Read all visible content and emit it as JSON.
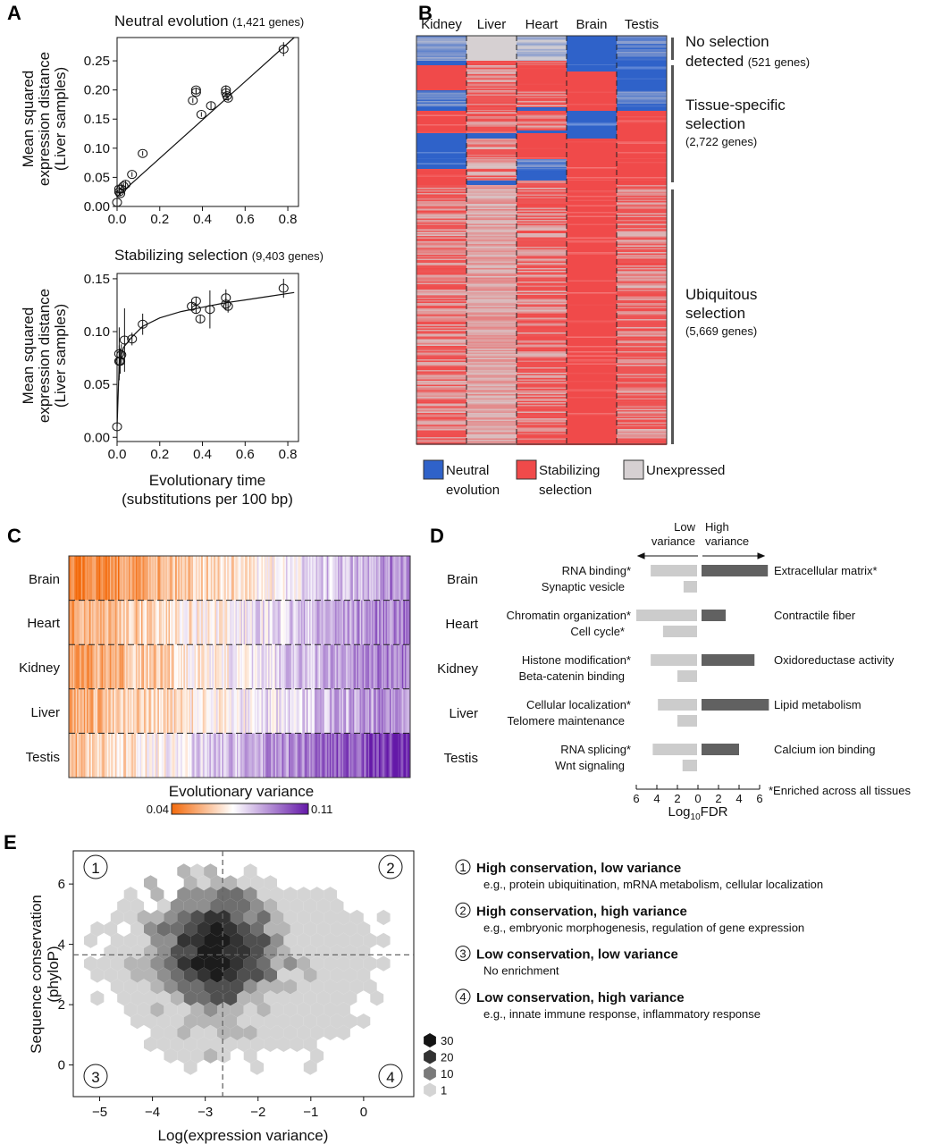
{
  "panel_labels": {
    "a": "A",
    "b": "B",
    "c": "C",
    "d": "D",
    "e": "E"
  },
  "chart_data": [
    {
      "panel": "A",
      "type": "scatter",
      "title": "Neutral evolution",
      "subtitle": "(1,421 genes)",
      "ylabel": [
        "Mean squared",
        "expression distance",
        "(Liver samples)"
      ],
      "xlim": [
        0,
        0.85
      ],
      "ylim": [
        0,
        0.29
      ],
      "xticks": [
        "0.0",
        "0.2",
        "0.4",
        "0.6",
        "0.8"
      ],
      "yticks": [
        "0.00",
        "0.05",
        "0.10",
        "0.15",
        "0.20",
        "0.25"
      ],
      "points": [
        [
          0,
          0.007,
          0.003
        ],
        [
          0.01,
          0.025,
          0.004
        ],
        [
          0.01,
          0.03,
          0.004
        ],
        [
          0.015,
          0.022,
          0.004
        ],
        [
          0.02,
          0.03,
          0.005
        ],
        [
          0.03,
          0.035,
          0.005
        ],
        [
          0.04,
          0.038,
          0.006
        ],
        [
          0.07,
          0.055,
          0.004
        ],
        [
          0.12,
          0.091,
          0.004
        ],
        [
          0.355,
          0.182,
          0.004
        ],
        [
          0.37,
          0.2,
          0.004
        ],
        [
          0.37,
          0.196,
          0.004
        ],
        [
          0.395,
          0.158,
          0.004
        ],
        [
          0.44,
          0.173,
          0.006
        ],
        [
          0.51,
          0.2,
          0.008
        ],
        [
          0.51,
          0.195,
          0.006
        ],
        [
          0.515,
          0.19,
          0.005
        ],
        [
          0.52,
          0.186,
          0.005
        ],
        [
          0.78,
          0.27,
          0.012
        ]
      ],
      "fit": [
        [
          0,
          0.017
        ],
        [
          0.83,
          0.29
        ]
      ]
    },
    {
      "panel": "A",
      "type": "scatter",
      "title": "Stabilizing selection",
      "subtitle": "(9,403 genes)",
      "ylabel": [
        "Mean squared",
        "expression distance",
        "(Liver samples)"
      ],
      "xlabel": [
        "Evolutionary time",
        "(substitutions per 100 bp)"
      ],
      "xlim": [
        0,
        0.85
      ],
      "ylim": [
        -0.004,
        0.155
      ],
      "xticks": [
        "0.0",
        "0.2",
        "0.4",
        "0.6",
        "0.8"
      ],
      "yticks": [
        "0.00",
        "0.05",
        "0.10",
        "0.15"
      ],
      "points": [
        [
          0,
          0.01,
          0.01
        ],
        [
          0.01,
          0.072,
          0.015
        ],
        [
          0.01,
          0.079,
          0.025
        ],
        [
          0.015,
          0.072,
          0.012
        ],
        [
          0.02,
          0.078,
          0.01
        ],
        [
          0.035,
          0.092,
          0.03
        ],
        [
          0.07,
          0.093,
          0.006
        ],
        [
          0.12,
          0.107,
          0.01
        ],
        [
          0.35,
          0.124,
          0.004
        ],
        [
          0.37,
          0.121,
          0.004
        ],
        [
          0.37,
          0.129,
          0.004
        ],
        [
          0.39,
          0.112,
          0.004
        ],
        [
          0.435,
          0.121,
          0.018
        ],
        [
          0.51,
          0.132,
          0.008
        ],
        [
          0.51,
          0.126,
          0.006
        ],
        [
          0.52,
          0.124,
          0.006
        ],
        [
          0.78,
          0.141,
          0.009
        ]
      ],
      "fit": [
        [
          0,
          0.01
        ],
        [
          0.01,
          0.07
        ],
        [
          0.03,
          0.085
        ],
        [
          0.07,
          0.095
        ],
        [
          0.12,
          0.105
        ],
        [
          0.2,
          0.113
        ],
        [
          0.3,
          0.119
        ],
        [
          0.4,
          0.123
        ],
        [
          0.5,
          0.127
        ],
        [
          0.6,
          0.13
        ],
        [
          0.7,
          0.133
        ],
        [
          0.83,
          0.137
        ]
      ]
    },
    {
      "panel": "B",
      "type": "heatmap",
      "columns": [
        "Kidney",
        "Liver",
        "Heart",
        "Brain",
        "Testis"
      ],
      "sections": [
        {
          "label": [
            "No selection",
            "detected"
          ],
          "count": "(521 genes)"
        },
        {
          "label": [
            "Tissue-specific",
            "selection"
          ],
          "count": "(2,722 genes)"
        },
        {
          "label": [
            "Ubiquitous",
            "selection"
          ],
          "count": "(5,669 genes)"
        }
      ],
      "legend": [
        {
          "label": [
            "Neutral",
            "evolution"
          ],
          "color": "#2f62c9"
        },
        {
          "label": [
            "Stabilizing",
            "selection"
          ],
          "color": "#f04a4a"
        },
        {
          "label": [
            "Unexpressed"
          ],
          "color": "#d6d0d2"
        }
      ]
    },
    {
      "panel": "C",
      "type": "heatmap",
      "rows": [
        "Brain",
        "Heart",
        "Kidney",
        "Liver",
        "Testis"
      ],
      "colorbar": {
        "title": "Evolutionary variance",
        "min": "0.04",
        "max": "0.11",
        "low_color": "#f36a0c",
        "mid_color": "#ffffff",
        "high_color": "#6418a8"
      }
    },
    {
      "panel": "D",
      "type": "bar",
      "header_low": [
        "Low",
        "variance"
      ],
      "header_high": [
        "High",
        "variance"
      ],
      "xlabel": "Log",
      "xlabel_sub": "10",
      "xlabel_tail": "FDR",
      "xticks": [
        "6",
        "4",
        "2",
        "0",
        "2",
        "4",
        "6"
      ],
      "footnote": "*Enriched across all tissues",
      "low_color": "#cccccc",
      "high_color": "#616161",
      "groups": [
        {
          "tissue": "Brain",
          "low": [
            {
              "term": "RNA binding*",
              "value": 4.6
            },
            {
              "term": "Synaptic vesicle",
              "value": 1.4
            }
          ],
          "high": {
            "term": "Extracellular matrix*",
            "value": 6.8
          }
        },
        {
          "tissue": "Heart",
          "low": [
            {
              "term": "Chromatin organization*",
              "value": 6.0
            },
            {
              "term": "Cell cycle*",
              "value": 3.4
            }
          ],
          "high": {
            "term": "Contractile fiber",
            "value": 2.7
          }
        },
        {
          "tissue": "Kidney",
          "low": [
            {
              "term": "Histone modification*",
              "value": 4.6
            },
            {
              "term": "Beta-catenin binding",
              "value": 2.0
            }
          ],
          "high": {
            "term": "Oxidoreductase activity",
            "value": 5.5
          }
        },
        {
          "tissue": "Liver",
          "low": [
            {
              "term": "Cellular localization*",
              "value": 3.9
            },
            {
              "term": "Telomere maintenance",
              "value": 2.0
            }
          ],
          "high": {
            "term": "Lipid metabolism",
            "value": 6.9
          }
        },
        {
          "tissue": "Testis",
          "low": [
            {
              "term": "RNA splicing*",
              "value": 4.4
            },
            {
              "term": "Wnt signaling",
              "value": 1.5
            }
          ],
          "high": {
            "term": "Calcium ion binding",
            "value": 4.0
          }
        }
      ]
    },
    {
      "panel": "E",
      "type": "hexbin",
      "xlabel": "Log(expression variance)",
      "ylabel": [
        "Sequence conservation",
        "(phyloP)"
      ],
      "xlim": [
        -5.5,
        0.95
      ],
      "ylim": [
        -1.05,
        7.1
      ],
      "xticks": [
        -5,
        -4,
        -3,
        -2,
        -1,
        0
      ],
      "xtick_labels": [
        "−5",
        "−4",
        "−3",
        "−2",
        "−1",
        "0"
      ],
      "yticks": [
        0,
        2,
        4,
        6
      ],
      "ytick_labels": [
        "0",
        "2",
        "4",
        "6"
      ],
      "threshold_x": -2.67,
      "threshold_y": 3.65,
      "count_legend": [
        {
          "label": "30",
          "color": "#141414"
        },
        {
          "label": "20",
          "color": "#333333"
        },
        {
          "label": "10",
          "color": "#7a7a7a"
        },
        {
          "label": "1",
          "color": "#d4d4d4"
        }
      ],
      "quadrants": [
        {
          "num": "1",
          "title": "High conservation, low variance",
          "desc": "e.g., protein ubiquitination, mRNA metabolism, cellular localization"
        },
        {
          "num": "2",
          "title": "High conservation, high variance",
          "desc": "e.g., embryonic morphogenesis, regulation of gene expression"
        },
        {
          "num": "3",
          "title": "Low conservation, low variance",
          "desc": "No enrichment"
        },
        {
          "num": "4",
          "title": "Low conservation, high variance",
          "desc": "e.g., innate immune response, inflammatory response"
        }
      ]
    }
  ]
}
